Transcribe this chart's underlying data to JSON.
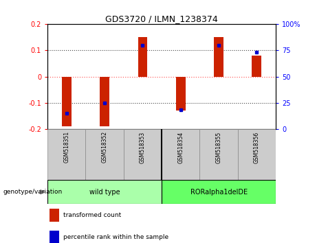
{
  "title": "GDS3720 / ILMN_1238374",
  "samples": [
    "GSM518351",
    "GSM518352",
    "GSM518353",
    "GSM518354",
    "GSM518355",
    "GSM518356"
  ],
  "red_values": [
    -0.19,
    -0.19,
    0.15,
    -0.13,
    0.15,
    0.08
  ],
  "blue_raw": [
    15,
    25,
    80,
    18,
    80,
    73
  ],
  "left_ylim": [
    -0.2,
    0.2
  ],
  "right_ylim": [
    0,
    100
  ],
  "left_yticks": [
    -0.2,
    -0.1,
    0,
    0.1,
    0.2
  ],
  "right_yticks": [
    0,
    25,
    50,
    75,
    100
  ],
  "left_yticklabels": [
    "-0.2",
    "-0.1",
    "0",
    "0.1",
    "0.2"
  ],
  "right_yticklabels": [
    "0",
    "25",
    "50",
    "75",
    "100%"
  ],
  "red_color": "#CC2200",
  "blue_color": "#0000CC",
  "zero_line_color": "#FF6666",
  "dotted_line_color": "#444444",
  "bar_width": 0.25,
  "groups": [
    {
      "label": "wild type",
      "samples": [
        0,
        1,
        2
      ],
      "color": "#AAFFAA"
    },
    {
      "label": "RORalpha1delDE",
      "samples": [
        3,
        4,
        5
      ],
      "color": "#66FF66"
    }
  ],
  "genotype_label": "genotype/variation",
  "legend_red": "transformed count",
  "legend_blue": "percentile rank within the sample",
  "bg_color": "#FFFFFF",
  "plot_bg": "#FFFFFF",
  "sample_box_color": "#CCCCCC"
}
